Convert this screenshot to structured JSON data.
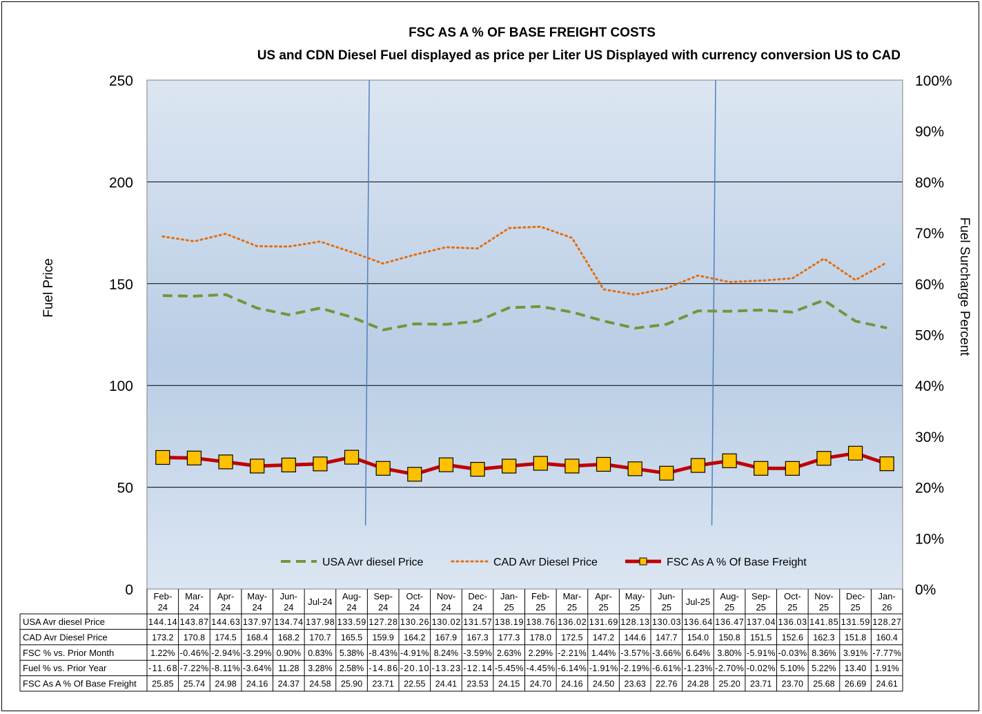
{
  "chart_data": {
    "type": "line",
    "title": "FSC AS A % OF BASE FREIGHT COSTS",
    "subtitle": "US and CDN Diesel Fuel displayed as price per Liter US Displayed with currency conversion US to CAD",
    "ylabel": "Fuel Price",
    "y2label": "Fuel Surcharge Percent",
    "ylim": [
      0,
      250
    ],
    "yticks": [
      "0",
      "50",
      "100",
      "150",
      "200",
      "250"
    ],
    "y2lim": [
      0,
      100
    ],
    "y2ticks": [
      "0%",
      "10%",
      "20%",
      "30%",
      "40%",
      "50%",
      "60%",
      "70%",
      "80%",
      "90%",
      "100%"
    ],
    "grid": "horizontal",
    "legend_position": "bottom",
    "categories": [
      [
        "Feb-",
        "24"
      ],
      [
        "Mar-",
        "24"
      ],
      [
        "Apr-",
        "24"
      ],
      [
        "May-",
        "24"
      ],
      [
        "Jun-",
        "24"
      ],
      [
        "Jul-24"
      ],
      [
        "Aug-",
        "24"
      ],
      [
        "Sep-",
        "24"
      ],
      [
        "Oct-",
        "24"
      ],
      [
        "Nov-",
        "24"
      ],
      [
        "Dec-",
        "24"
      ],
      [
        "Jan-",
        "25"
      ],
      [
        "Feb-",
        "25"
      ],
      [
        "Mar-",
        "25"
      ],
      [
        "Apr-",
        "25"
      ],
      [
        "May-",
        "25"
      ],
      [
        "Jun-",
        "25"
      ],
      [
        "Jul-25"
      ],
      [
        "Aug-",
        "25"
      ],
      [
        "Sep-",
        "25"
      ],
      [
        "Oct-",
        "25"
      ],
      [
        "Nov-",
        "25"
      ],
      [
        "Dec-",
        "25"
      ],
      [
        "Jan-",
        "26"
      ]
    ],
    "series": [
      {
        "name": "USA Avr diesel Price",
        "axis": "left",
        "style": "dashed",
        "color": "#77933C",
        "values": [
          144.14,
          143.87,
          144.63,
          137.97,
          134.74,
          137.98,
          133.59,
          127.28,
          130.26,
          130.02,
          131.57,
          138.19,
          138.76,
          136.02,
          131.69,
          128.13,
          130.03,
          136.64,
          136.47,
          137.04,
          136.03,
          141.85,
          131.59,
          128.27
        ],
        "labels": [
          "144.14",
          "143.87",
          "144.63",
          "137.97",
          "134.74",
          "137.98",
          "133.59",
          "127.28",
          "130.26",
          "130.02",
          "131.57",
          "138.19",
          "138.76",
          "136.02",
          "131.69",
          "128.13",
          "130.03",
          "136.64",
          "136.47",
          "137.04",
          "136.03",
          "141.85",
          "131.59",
          "128.27"
        ]
      },
      {
        "name": "CAD Avr Diesel Price",
        "axis": "left",
        "style": "dotted",
        "color": "#E46C0A",
        "values": [
          173.2,
          170.8,
          174.5,
          168.4,
          168.2,
          170.7,
          165.5,
          159.9,
          164.2,
          167.9,
          167.3,
          177.3,
          178.0,
          172.5,
          147.2,
          144.6,
          147.7,
          154.0,
          150.8,
          151.5,
          152.6,
          162.3,
          151.8,
          160.4
        ],
        "labels": [
          "173.2",
          "170.8",
          "174.5",
          "168.4",
          "168.2",
          "170.7",
          "165.5",
          "159.9",
          "164.2",
          "167.9",
          "167.3",
          "177.3",
          "178.0",
          "172.5",
          "147.2",
          "144.6",
          "147.7",
          "154.0",
          "150.8",
          "151.5",
          "152.6",
          "162.3",
          "151.8",
          "160.4"
        ]
      },
      {
        "name": "FSC As A % Of Base Freight",
        "axis": "right",
        "style": "solid-markers",
        "color": "#C00000",
        "marker_color": "#FFC000",
        "values": [
          25.85,
          25.74,
          24.98,
          24.16,
          24.37,
          24.58,
          25.9,
          23.71,
          22.55,
          24.41,
          23.53,
          24.15,
          24.7,
          24.16,
          24.5,
          23.63,
          22.76,
          24.28,
          25.2,
          23.71,
          23.7,
          25.68,
          26.69,
          24.61
        ],
        "labels": [
          "25.85",
          "25.74",
          "24.98",
          "24.16",
          "24.37",
          "24.58",
          "25.90",
          "23.71",
          "22.55",
          "24.41",
          "23.53",
          "24.15",
          "24.70",
          "24.16",
          "24.50",
          "23.63",
          "22.76",
          "24.28",
          "25.20",
          "23.71",
          "23.70",
          "25.68",
          "26.69",
          "24.61"
        ]
      }
    ],
    "table_rows": [
      {
        "name": "USA Avr diesel Price",
        "legend": "dashed",
        "values": [
          "144.14",
          "143.87",
          "144.63",
          "137.97",
          "134.74",
          "137.98",
          "133.59",
          "127.28",
          "130.26",
          "130.02",
          "131.57",
          "138.19",
          "138.76",
          "136.02",
          "131.69",
          "128.13",
          "130.03",
          "136.64",
          "136.47",
          "137.04",
          "136.03",
          "141.85",
          "131.59",
          "128.27"
        ]
      },
      {
        "name": "CAD Avr Diesel Price",
        "legend": "dotted",
        "values": [
          "173.2",
          "170.8",
          "174.5",
          "168.4",
          "168.2",
          "170.7",
          "165.5",
          "159.9",
          "164.2",
          "167.9",
          "167.3",
          "177.3",
          "178.0",
          "172.5",
          "147.2",
          "144.6",
          "147.7",
          "154.0",
          "150.8",
          "151.5",
          "152.6",
          "162.3",
          "151.8",
          "160.4"
        ]
      },
      {
        "name": "FSC % vs. Prior Month",
        "legend": "none",
        "values": [
          "1.22%",
          "-0.46%",
          "-2.94%",
          "-3.29%",
          "0.90%",
          "0.83%",
          "5.38%",
          "-8.43%",
          "-4.91%",
          "8.24%",
          "-3.59%",
          "2.63%",
          "2.29%",
          "-2.21%",
          "1.44%",
          "-3.57%",
          "-3.66%",
          "6.64%",
          "3.80%",
          "-5.91%",
          "-0.03%",
          "8.36%",
          "3.91%",
          "-7.77%"
        ]
      },
      {
        "name": "Fuel % vs. Prior Year",
        "legend": "none",
        "values": [
          "-11.68",
          "-7.22%",
          "-8.11%",
          "-3.64%",
          "11.28",
          "3.28%",
          "2.58%",
          "-14.86",
          "-20.10",
          "-13.23",
          "-12.14",
          "-5.45%",
          "-4.45%",
          "-6.14%",
          "-1.91%",
          "-2.19%",
          "-6.61%",
          "-1.23%",
          "-2.70%",
          "-0.02%",
          "5.10%",
          "5.22%",
          "13.40",
          "1.91%"
        ]
      },
      {
        "name": "FSC As A % Of Base Freight",
        "legend": "marker",
        "values": [
          "25.85",
          "25.74",
          "24.98",
          "24.16",
          "24.37",
          "24.58",
          "25.90",
          "23.71",
          "22.55",
          "24.41",
          "23.53",
          "24.15",
          "24.70",
          "24.16",
          "24.50",
          "23.63",
          "22.76",
          "24.28",
          "25.20",
          "23.71",
          "23.70",
          "25.68",
          "26.69",
          "24.61"
        ]
      }
    ],
    "vertical_markers": [
      {
        "between": [
          "Aug-24",
          "Sep-24"
        ],
        "color": "#4F81BD"
      },
      {
        "between": [
          "Jul-25",
          "Aug-25"
        ],
        "color": "#4F81BD"
      }
    ]
  }
}
